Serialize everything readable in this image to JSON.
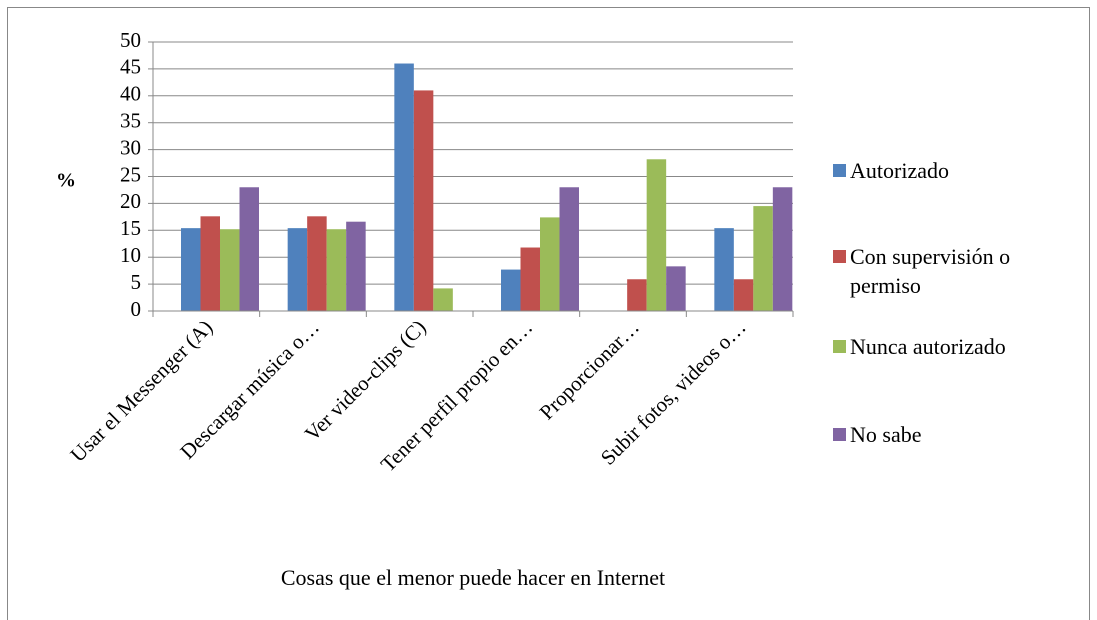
{
  "chart_data": {
    "type": "bar",
    "y_label": "%",
    "x_label": "Cosas que el menor puede hacer en Internet",
    "categories": [
      "Usar el Messenger (A)",
      "Descargar música o…",
      "Ver video-clips (C)",
      "Tener perfil propio en…",
      "Proporcionar…",
      "Subir fotos, videos o…"
    ],
    "series": [
      {
        "name": "Autorizado",
        "color": "#4f81bd",
        "values": [
          15.4,
          15.4,
          46,
          7.7,
          0,
          15.4
        ]
      },
      {
        "name": "Con supervisión o permiso",
        "color": "#c0504d",
        "values": [
          17.6,
          17.6,
          41,
          11.8,
          5.9,
          5.9
        ]
      },
      {
        "name": "Nunca autorizado",
        "color": "#9bbb59",
        "values": [
          15.2,
          15.2,
          4.2,
          17.4,
          28.2,
          19.5
        ]
      },
      {
        "name": "No sabe",
        "color": "#8064a2",
        "values": [
          23,
          16.6,
          0,
          23,
          8.3,
          23
        ]
      }
    ],
    "ylim": [
      0,
      50
    ],
    "yticks": [
      0,
      5,
      10,
      15,
      20,
      25,
      30,
      35,
      40,
      45,
      50
    ],
    "grid": true,
    "legend": "right"
  }
}
